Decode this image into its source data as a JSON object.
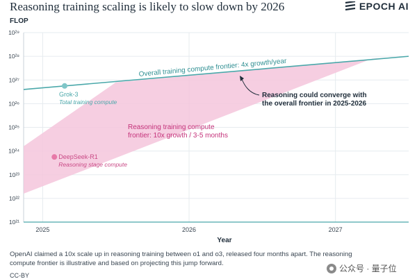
{
  "header": {
    "title": "Reasoning training scaling is likely to slow down by 2026",
    "brand": "EPOCH AI"
  },
  "chart_data": {
    "type": "line",
    "title": "Reasoning training scaling is likely to slow down by 2026",
    "ylabel": "FLOP",
    "xlabel": "Year",
    "x_ticks": [
      "2025",
      "2026",
      "2027"
    ],
    "y_scale": "log",
    "y_ticks": [
      "10²¹",
      "10²²",
      "10²³",
      "10²⁴",
      "10²⁵",
      "10²⁶",
      "10²⁷",
      "10²⁸",
      "10²⁹"
    ],
    "y_tick_exponents": [
      21,
      22,
      23,
      24,
      25,
      26,
      27,
      28,
      29
    ],
    "xlim": [
      2024.87,
      2027.5
    ],
    "ylim_exponent": [
      21,
      29
    ],
    "grid": true,
    "series": [
      {
        "name": "Overall training compute frontier: 4x growth/year",
        "color": "#4aa8aa",
        "points": [
          [
            2024.87,
            26.6
          ],
          [
            2027.5,
            28.0
          ]
        ]
      }
    ],
    "region": {
      "name": "Reasoning training compute frontier: 10x growth / 3-5 months",
      "color": "#f4c6dc",
      "polygon": [
        [
          2024.87,
          22.2
        ],
        [
          2024.87,
          24.2
        ],
        [
          2025.5,
          26.9
        ],
        [
          2027.5,
          28.0
        ],
        [
          2027.25,
          27.9
        ]
      ]
    },
    "points": [
      {
        "name": "Grok-3",
        "sub": "Total training compute",
        "x": 2025.15,
        "y": 26.75,
        "color": "#7fc6c8",
        "text_color": "#4aa8aa"
      },
      {
        "name": "DeepSeek-R1",
        "sub": "Reasoning stage compute",
        "x": 2025.08,
        "y": 23.75,
        "color": "#e779a8",
        "text_color": "#c94a86"
      }
    ],
    "annotations": [
      {
        "text": "Overall training compute frontier: 4x growth/year",
        "color": "#2f8f92"
      },
      {
        "text": "Reasoning training compute\nfrontier: 10x growth / 3-5 months",
        "color": "#c4327a"
      },
      {
        "text": "Reasoning could converge with\nthe overall frontier in 2025-2026",
        "color": "#1f2d3a"
      }
    ]
  },
  "footnote": "OpenAI claimed a 10x scale up in reasoning training between o1 and o3, released four months apart. The reasoning compute frontier is illustrative and based on projecting this jump forward.",
  "credit": "CC-BY",
  "watermark": "公众号 · 量子位"
}
